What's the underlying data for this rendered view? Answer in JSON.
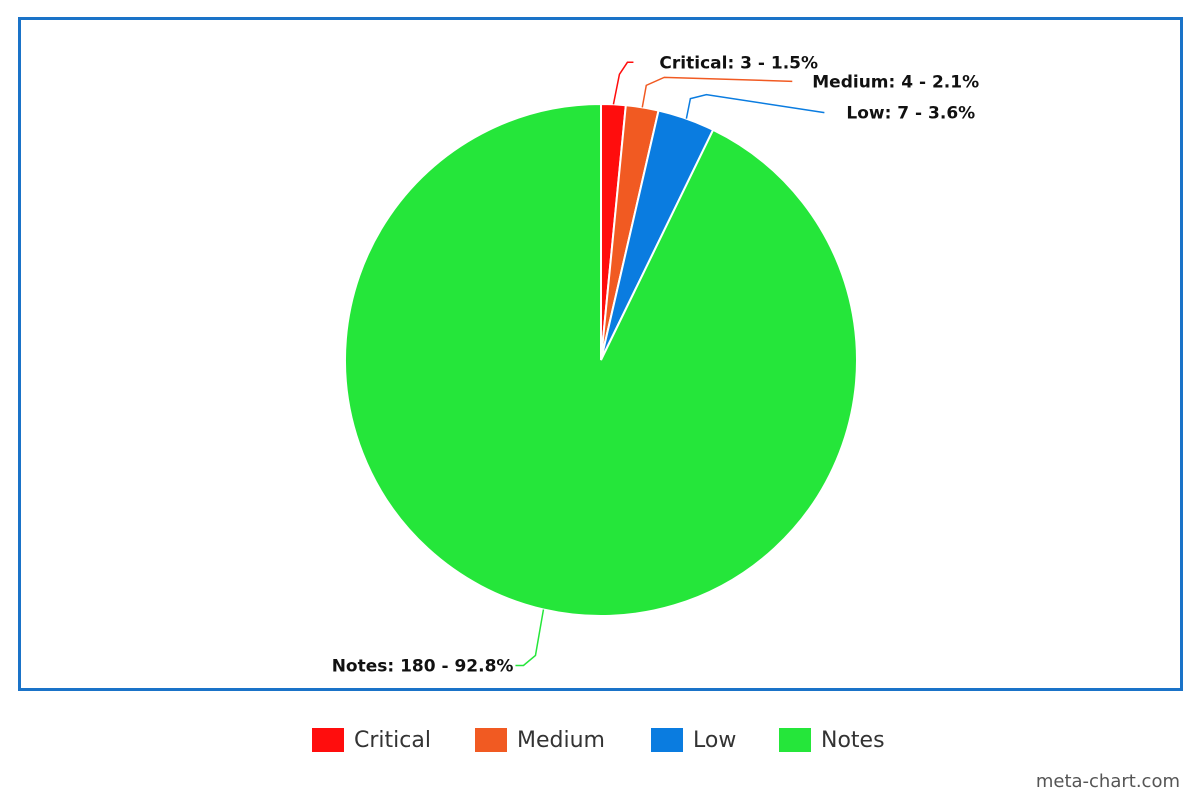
{
  "chart_data": {
    "type": "pie",
    "categories": [
      "Critical",
      "Medium",
      "Low",
      "Notes"
    ],
    "values": [
      3,
      4,
      7,
      180
    ],
    "percents": [
      "1.5%",
      "2.1%",
      "3.6%",
      "92.8%"
    ],
    "data_labels": [
      "Critical: 3 - 1.5%",
      "Medium: 4 - 2.1%",
      "Low: 7 - 3.6%",
      "Notes: 180 - 92.8%"
    ],
    "colors": [
      "#ff0d0d",
      "#f15a22",
      "#0a7ce0",
      "#25e63a"
    ],
    "legend_position": "bottom-center"
  },
  "legend": {
    "items": [
      {
        "label": "Critical",
        "color": "#ff0d0d"
      },
      {
        "label": "Medium",
        "color": "#f15a22"
      },
      {
        "label": "Low",
        "color": "#0a7ce0"
      },
      {
        "label": "Notes",
        "color": "#25e63a"
      }
    ]
  },
  "watermark": "meta-chart.com",
  "frame_color": "#1a73c8"
}
